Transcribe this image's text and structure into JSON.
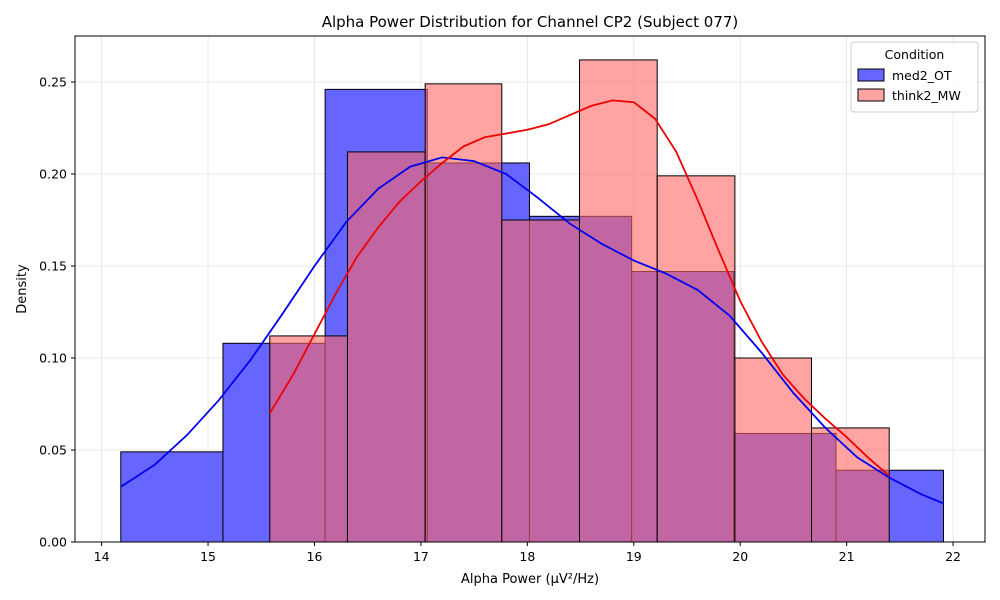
{
  "chart_data": {
    "type": "histogram",
    "title": "Alpha Power Distribution for Channel CP2 (Subject 077)",
    "xlabel": "Alpha Power (μV²/Hz)",
    "ylabel": "Density",
    "xlim": [
      13.75,
      22.3
    ],
    "ylim": [
      0,
      0.275
    ],
    "x_ticks": [
      14,
      15,
      16,
      17,
      18,
      19,
      20,
      21,
      22
    ],
    "y_ticks": [
      0.0,
      0.05,
      0.1,
      0.15,
      0.2,
      0.25
    ],
    "grid": true,
    "legend": {
      "title": "Condition",
      "position": "top-right"
    },
    "series": [
      {
        "name": "med2_OT",
        "fill": "#6666ff",
        "kde_color": "#0000ee",
        "bins": [
          [
            14.18,
            15.14,
            0.049
          ],
          [
            15.14,
            16.1,
            0.108
          ],
          [
            16.1,
            17.06,
            0.246
          ],
          [
            17.06,
            18.02,
            0.206
          ],
          [
            18.02,
            18.98,
            0.177
          ],
          [
            18.98,
            19.94,
            0.147
          ],
          [
            19.94,
            20.9,
            0.059
          ],
          [
            20.9,
            21.91,
            0.039
          ]
        ],
        "kde": [
          [
            14.18,
            0.03
          ],
          [
            14.5,
            0.042
          ],
          [
            14.8,
            0.058
          ],
          [
            15.1,
            0.077
          ],
          [
            15.4,
            0.099
          ],
          [
            15.7,
            0.124
          ],
          [
            16.0,
            0.15
          ],
          [
            16.3,
            0.174
          ],
          [
            16.6,
            0.192
          ],
          [
            16.9,
            0.204
          ],
          [
            17.2,
            0.209
          ],
          [
            17.5,
            0.207
          ],
          [
            17.8,
            0.2
          ],
          [
            18.1,
            0.187
          ],
          [
            18.4,
            0.173
          ],
          [
            18.7,
            0.162
          ],
          [
            19.0,
            0.153
          ],
          [
            19.3,
            0.146
          ],
          [
            19.6,
            0.137
          ],
          [
            19.9,
            0.123
          ],
          [
            20.2,
            0.103
          ],
          [
            20.5,
            0.081
          ],
          [
            20.8,
            0.062
          ],
          [
            21.1,
            0.046
          ],
          [
            21.4,
            0.035
          ],
          [
            21.7,
            0.026
          ],
          [
            21.91,
            0.021
          ]
        ]
      },
      {
        "name": "think2_MW",
        "fill": "#ff6666",
        "kde_color": "#ee0000",
        "bins": [
          [
            15.58,
            16.31,
            0.112
          ],
          [
            16.31,
            17.04,
            0.212
          ],
          [
            17.04,
            17.76,
            0.249
          ],
          [
            17.76,
            18.49,
            0.175
          ],
          [
            18.49,
            19.22,
            0.262
          ],
          [
            19.22,
            19.95,
            0.199
          ],
          [
            19.95,
            20.67,
            0.1
          ],
          [
            20.67,
            21.4,
            0.062
          ]
        ],
        "kde": [
          [
            15.58,
            0.07
          ],
          [
            15.8,
            0.091
          ],
          [
            16.0,
            0.113
          ],
          [
            16.2,
            0.135
          ],
          [
            16.4,
            0.155
          ],
          [
            16.6,
            0.171
          ],
          [
            16.8,
            0.185
          ],
          [
            17.0,
            0.196
          ],
          [
            17.2,
            0.206
          ],
          [
            17.4,
            0.215
          ],
          [
            17.6,
            0.22
          ],
          [
            17.8,
            0.222
          ],
          [
            18.0,
            0.224
          ],
          [
            18.2,
            0.227
          ],
          [
            18.4,
            0.232
          ],
          [
            18.6,
            0.237
          ],
          [
            18.8,
            0.24
          ],
          [
            19.0,
            0.239
          ],
          [
            19.2,
            0.23
          ],
          [
            19.4,
            0.212
          ],
          [
            19.6,
            0.186
          ],
          [
            19.8,
            0.158
          ],
          [
            20.0,
            0.131
          ],
          [
            20.2,
            0.109
          ],
          [
            20.4,
            0.091
          ],
          [
            20.6,
            0.078
          ],
          [
            20.8,
            0.067
          ],
          [
            21.0,
            0.057
          ],
          [
            21.2,
            0.046
          ],
          [
            21.4,
            0.036
          ]
        ]
      }
    ]
  }
}
